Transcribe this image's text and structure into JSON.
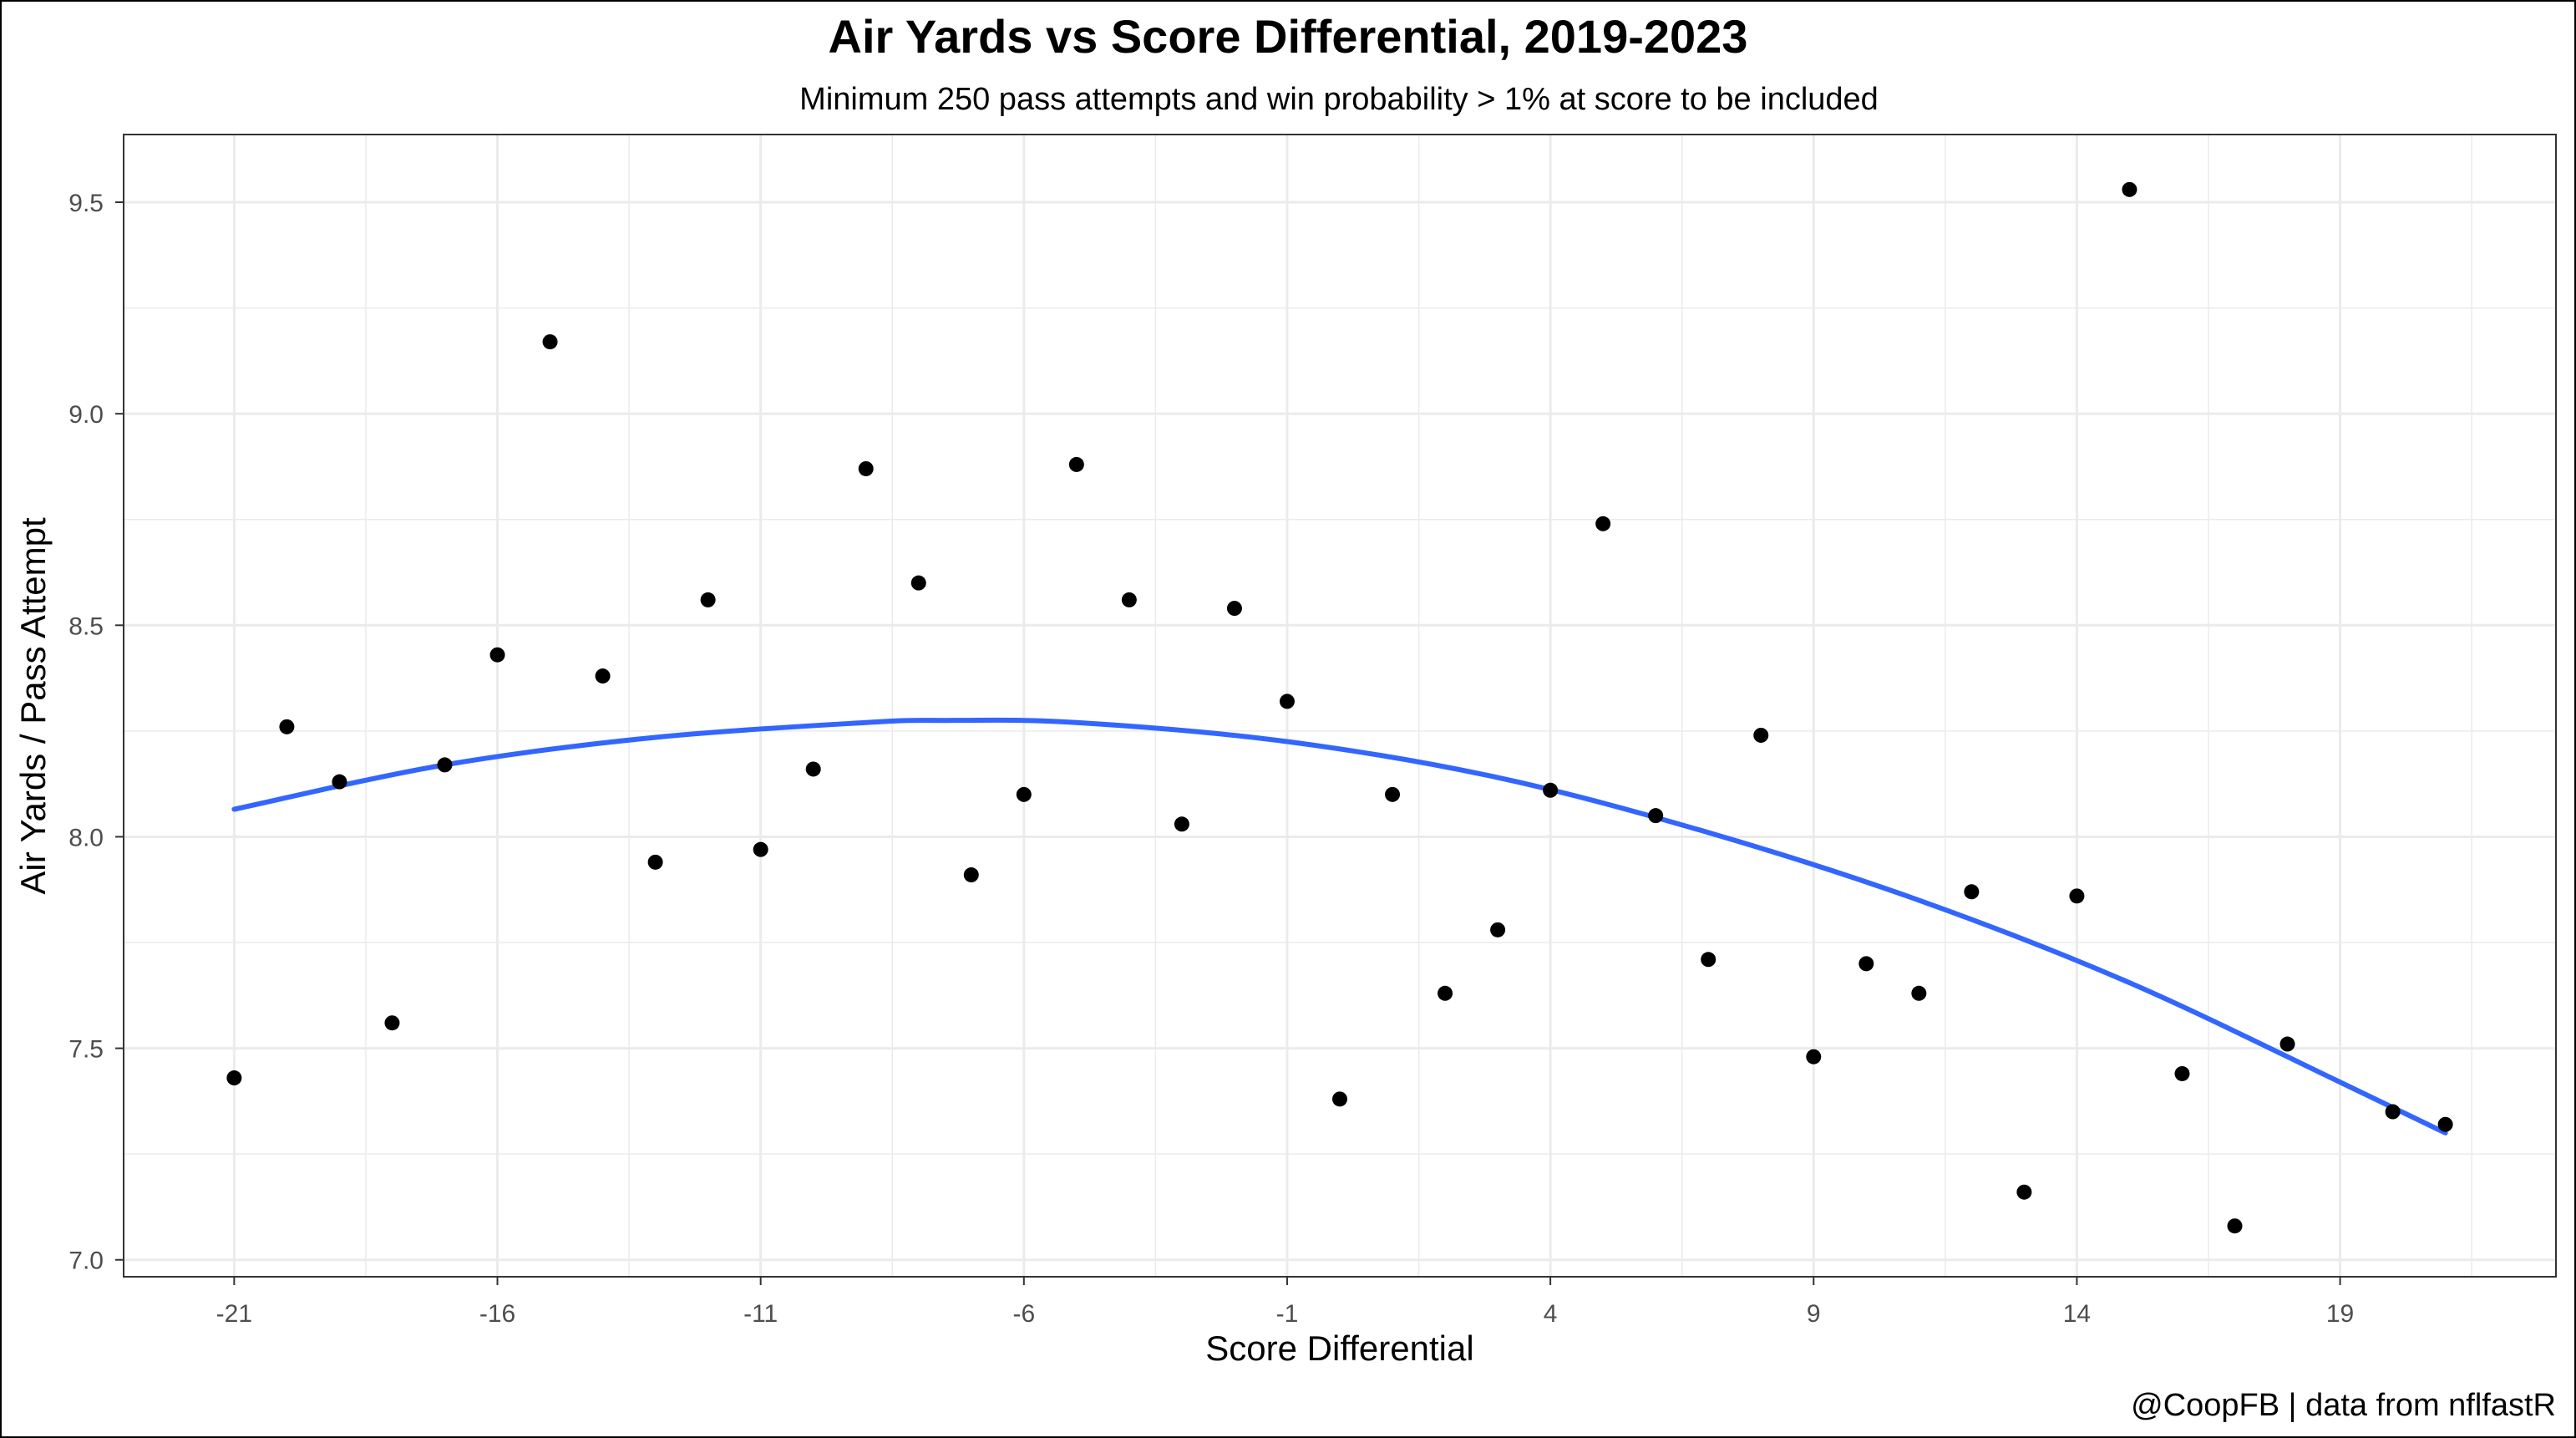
{
  "chart_data": {
    "type": "scatter",
    "title": "Air Yards vs Score Differential, 2019-2023",
    "subtitle": "Minimum 250 pass attempts and win probability > 1% at score to be included",
    "xlabel": "Score Differential",
    "ylabel": "Air Yards / Pass Attempt",
    "caption": "@CoopFB | data from nflfastR",
    "xlim": [
      -23.1,
      23.1
    ],
    "ylim": [
      6.96,
      9.66
    ],
    "x_ticks": [
      -21,
      -16,
      -11,
      -6,
      -1,
      4,
      9,
      14,
      19
    ],
    "y_ticks": [
      7.0,
      7.5,
      8.0,
      8.5,
      9.0,
      9.5
    ],
    "y_tick_labels": [
      "7.0",
      "7.5",
      "8.0",
      "8.5",
      "9.0",
      "9.5"
    ],
    "grid": true,
    "colors": {
      "points": "#000000",
      "fit_line": "#3366FF",
      "grid": "#ebebeb"
    },
    "points": [
      {
        "x": -21,
        "y": 7.43
      },
      {
        "x": -20,
        "y": 8.26
      },
      {
        "x": -19,
        "y": 8.13
      },
      {
        "x": -18,
        "y": 7.56
      },
      {
        "x": -17,
        "y": 8.17
      },
      {
        "x": -16,
        "y": 8.43
      },
      {
        "x": -15,
        "y": 9.17
      },
      {
        "x": -14,
        "y": 8.38
      },
      {
        "x": -13,
        "y": 7.94
      },
      {
        "x": -12,
        "y": 8.56
      },
      {
        "x": -11,
        "y": 7.97
      },
      {
        "x": -10,
        "y": 8.16
      },
      {
        "x": -9,
        "y": 8.87
      },
      {
        "x": -8,
        "y": 8.6
      },
      {
        "x": -7,
        "y": 7.91
      },
      {
        "x": -6,
        "y": 8.1
      },
      {
        "x": -5,
        "y": 8.88
      },
      {
        "x": -4,
        "y": 8.56
      },
      {
        "x": -3,
        "y": 8.03
      },
      {
        "x": -2,
        "y": 8.54
      },
      {
        "x": -1,
        "y": 8.32
      },
      {
        "x": 0,
        "y": 7.38
      },
      {
        "x": 1,
        "y": 8.1
      },
      {
        "x": 2,
        "y": 7.63
      },
      {
        "x": 3,
        "y": 7.78
      },
      {
        "x": 4,
        "y": 8.11
      },
      {
        "x": 5,
        "y": 8.74
      },
      {
        "x": 6,
        "y": 8.05
      },
      {
        "x": 7,
        "y": 7.71
      },
      {
        "x": 8,
        "y": 8.24
      },
      {
        "x": 9,
        "y": 7.48
      },
      {
        "x": 10,
        "y": 7.7
      },
      {
        "x": 11,
        "y": 7.63
      },
      {
        "x": 12,
        "y": 7.87
      },
      {
        "x": 13,
        "y": 7.16
      },
      {
        "x": 14,
        "y": 7.86
      },
      {
        "x": 15,
        "y": 9.53
      },
      {
        "x": 16,
        "y": 7.44
      },
      {
        "x": 17,
        "y": 7.08
      },
      {
        "x": 18,
        "y": 7.51
      },
      {
        "x": 20,
        "y": 7.35
      },
      {
        "x": 21,
        "y": 7.32
      }
    ],
    "fit_line": [
      {
        "x": -21,
        "y": 8.065
      },
      {
        "x": -17,
        "y": 8.17
      },
      {
        "x": -13,
        "y": 8.235
      },
      {
        "x": -9,
        "y": 8.27
      },
      {
        "x": -7.5,
        "y": 8.275
      },
      {
        "x": -5,
        "y": 8.27
      },
      {
        "x": -1,
        "y": 8.225
      },
      {
        "x": 3,
        "y": 8.14
      },
      {
        "x": 7,
        "y": 8.01
      },
      {
        "x": 11,
        "y": 7.85
      },
      {
        "x": 15,
        "y": 7.655
      },
      {
        "x": 19,
        "y": 7.42
      },
      {
        "x": 21,
        "y": 7.3
      }
    ]
  }
}
